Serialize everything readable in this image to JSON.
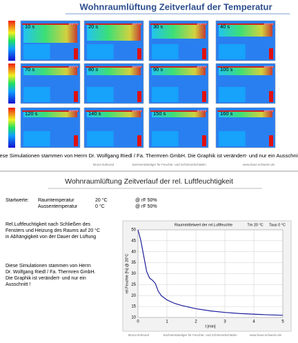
{
  "top_slide": {
    "title": "Wohnraumlüftung Zeitverlauf der Temperatur",
    "frames": [
      {
        "label": "10 s",
        "logo": "ANSYS"
      },
      {
        "label": "20 s",
        "logo": "ANSYS"
      },
      {
        "label": "30 s",
        "logo": "ANSYS"
      },
      {
        "label": "40 s",
        "logo": "ANSYS"
      },
      {
        "label": "70 s",
        "logo": "ANSYS"
      },
      {
        "label": "80 s",
        "logo": "ANSYS"
      },
      {
        "label": "90 s",
        "logo": "ANSYS"
      },
      {
        "label": "100 s",
        "logo": "ANSYS"
      },
      {
        "label": "120 s",
        "logo": "ANSYS"
      },
      {
        "label": "140 s",
        "logo": "ANSYS"
      },
      {
        "label": "150 s",
        "logo": "ANSYS"
      },
      {
        "label": "160 s",
        "logo": "ANSYS"
      }
    ],
    "caption": "Diese Simulationen stammen von Herrn Dr. Wolfgang Riedl / Fa. Thermren GmbH. Die Graphik ist verändert- und nur ein Ausschnitt !",
    "footer": [
      "Bruno Edmund",
      "Sachverständiger für Feuchte- und Schimmelschäden",
      "www.haus-schwerin.de"
    ]
  },
  "bottom_slide": {
    "title": "Wohnraumlüftung Zeitverlauf der rel. Luftfeuchtigkeit",
    "start_label": "Startwerte:",
    "start_rows": [
      [
        "Raumtemperatur",
        "20 °C",
        "@ rF 50%"
      ],
      [
        "Aussentemperatur",
        "0 °C",
        "@ rF 50%"
      ]
    ],
    "paragraph1": [
      "Rel.Luftfeuchtigkeit nach Schließen des",
      "Fensters und Heizung des Raums auf 20 °C",
      "in Abhängigkeit von der Dauer der Lüftung"
    ],
    "paragraph2": [
      "Diese Simulationen stammen von Herrn",
      "Dr. Wolfgang Riedl / Fa. Thermren GmbH.",
      "Die Graphik ist verändert- und nur ein",
      "Ausschnitt !"
    ],
    "footer": [
      "Bruno Edmund",
      "Sachverständiger für Feuchte- und Schimmelschäden",
      "www.haus-schwerin.de"
    ]
  },
  "chart_data": {
    "type": "line",
    "title": "Raummittelwert der rel.Luftfeuchte",
    "annotations": [
      "Tm 20 °C",
      "Taus 0 °C"
    ],
    "x_label": "t [min]",
    "y_label": "rel.Feuchte [%] @ 20°C",
    "x": [
      0,
      0.1,
      0.2,
      0.3,
      0.4,
      0.5,
      0.6,
      0.7,
      0.8,
      1.0,
      1.25,
      1.5,
      2,
      2.5,
      3,
      3.5,
      4,
      4.5,
      5
    ],
    "series": [
      {
        "name": "rel.Luftfeuchte",
        "color": "#1c1c9c",
        "values": [
          50,
          45,
          38,
          31,
          28,
          27,
          25.5,
          22,
          20,
          18,
          16.5,
          15.5,
          14,
          13,
          12.3,
          11.8,
          11.5,
          11.2,
          11
        ]
      }
    ],
    "xlim": [
      0,
      5
    ],
    "xticks": [
      0,
      1,
      2,
      3,
      4,
      5
    ],
    "ylim": [
      10,
      50
    ],
    "yticks": [
      10,
      15,
      20,
      25,
      30,
      35,
      40,
      45,
      50
    ],
    "grid": true
  }
}
